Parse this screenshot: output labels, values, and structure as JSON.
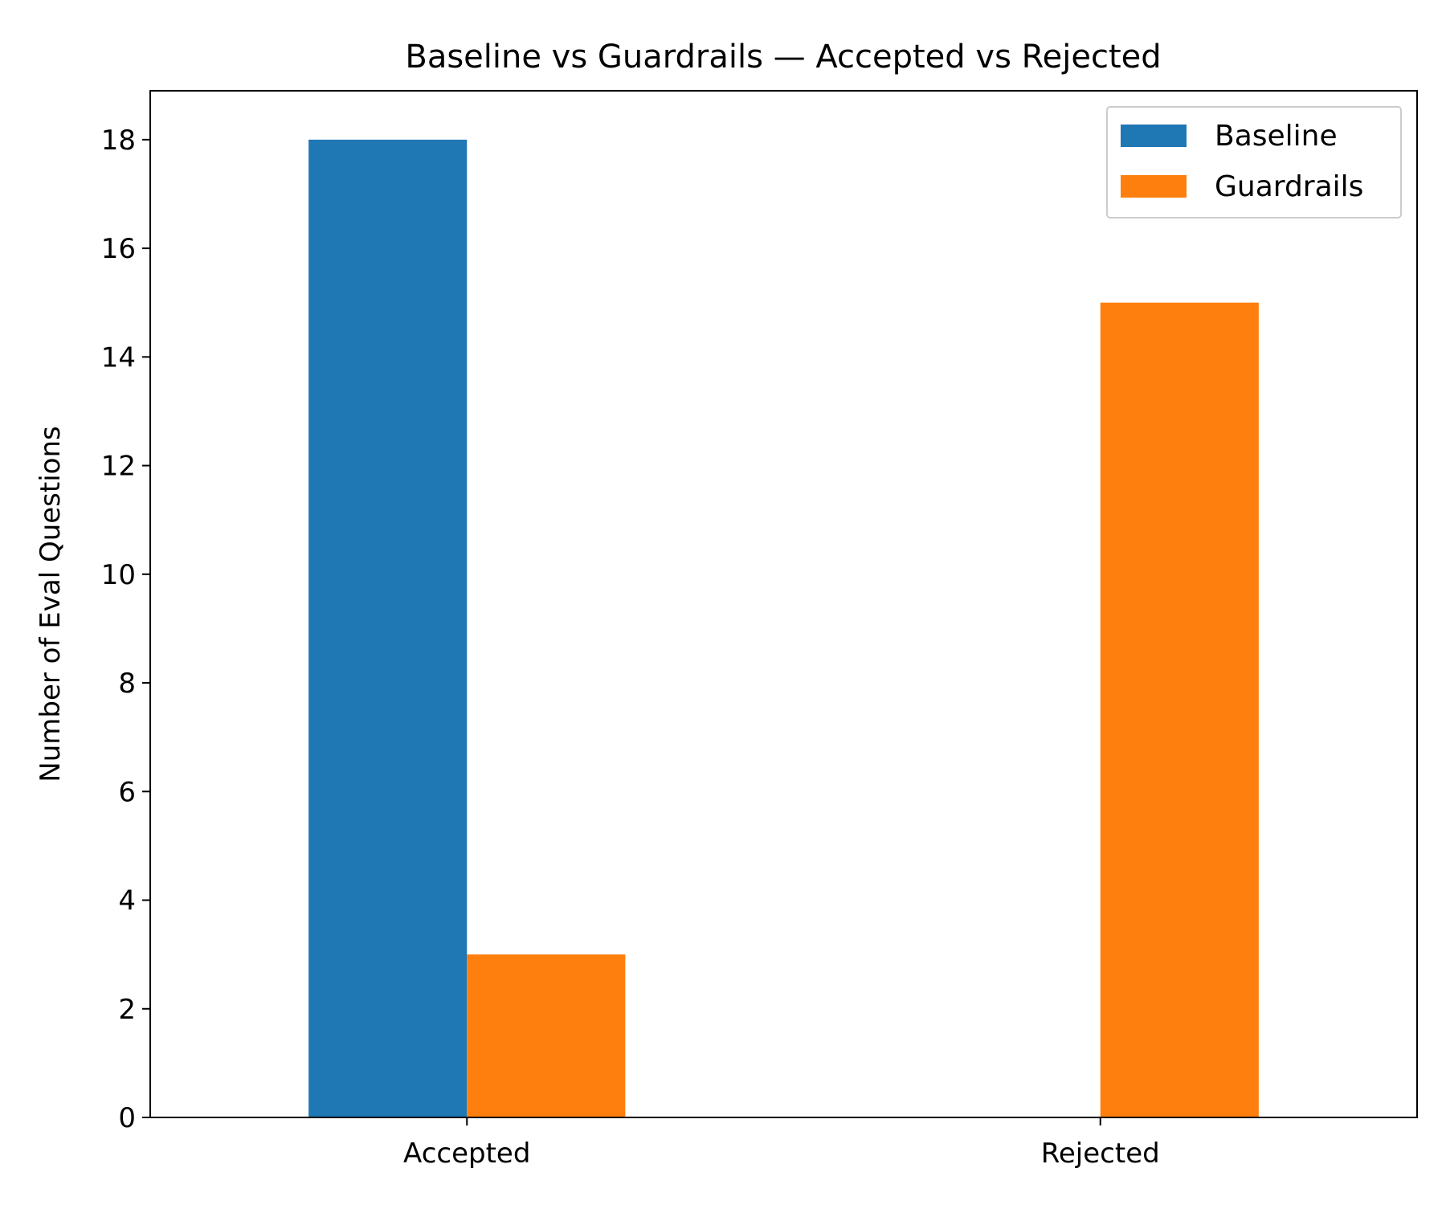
{
  "chart_data": {
    "type": "bar",
    "title": "Baseline vs Guardrails — Accepted vs Rejected",
    "xlabel": "",
    "ylabel": "Number of Eval Questions",
    "categories": [
      "Accepted",
      "Rejected"
    ],
    "series": [
      {
        "name": "Baseline",
        "values": [
          18,
          0
        ],
        "color": "#1f77b4"
      },
      {
        "name": "Guardrails",
        "values": [
          3,
          15
        ],
        "color": "#ff7f0e"
      }
    ],
    "ylim": [
      0,
      18.9
    ],
    "yticks": [
      0,
      2,
      4,
      6,
      8,
      10,
      12,
      14,
      16,
      18
    ],
    "grid": false,
    "legend_position": "top-right"
  }
}
